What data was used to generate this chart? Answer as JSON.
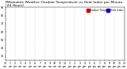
{
  "title": "Milwaukee Weather Outdoor Temperature vs Heat Index per Minute (24 Hours)",
  "bg_color": "#ffffff",
  "temp_color": "#cc0000",
  "heat_color": "#0000cc",
  "legend_labels": [
    "Outdoor Temp",
    "Heat Index"
  ],
  "legend_colors": [
    "#cc0000",
    "#0000cc"
  ],
  "ylim": [
    25,
    90
  ],
  "xlim": [
    0,
    1440
  ],
  "yticks": [
    30,
    40,
    50,
    60,
    70,
    80,
    90
  ],
  "dot_size": 0.5,
  "title_fontsize": 3.2,
  "tick_fontsize": 2.3
}
